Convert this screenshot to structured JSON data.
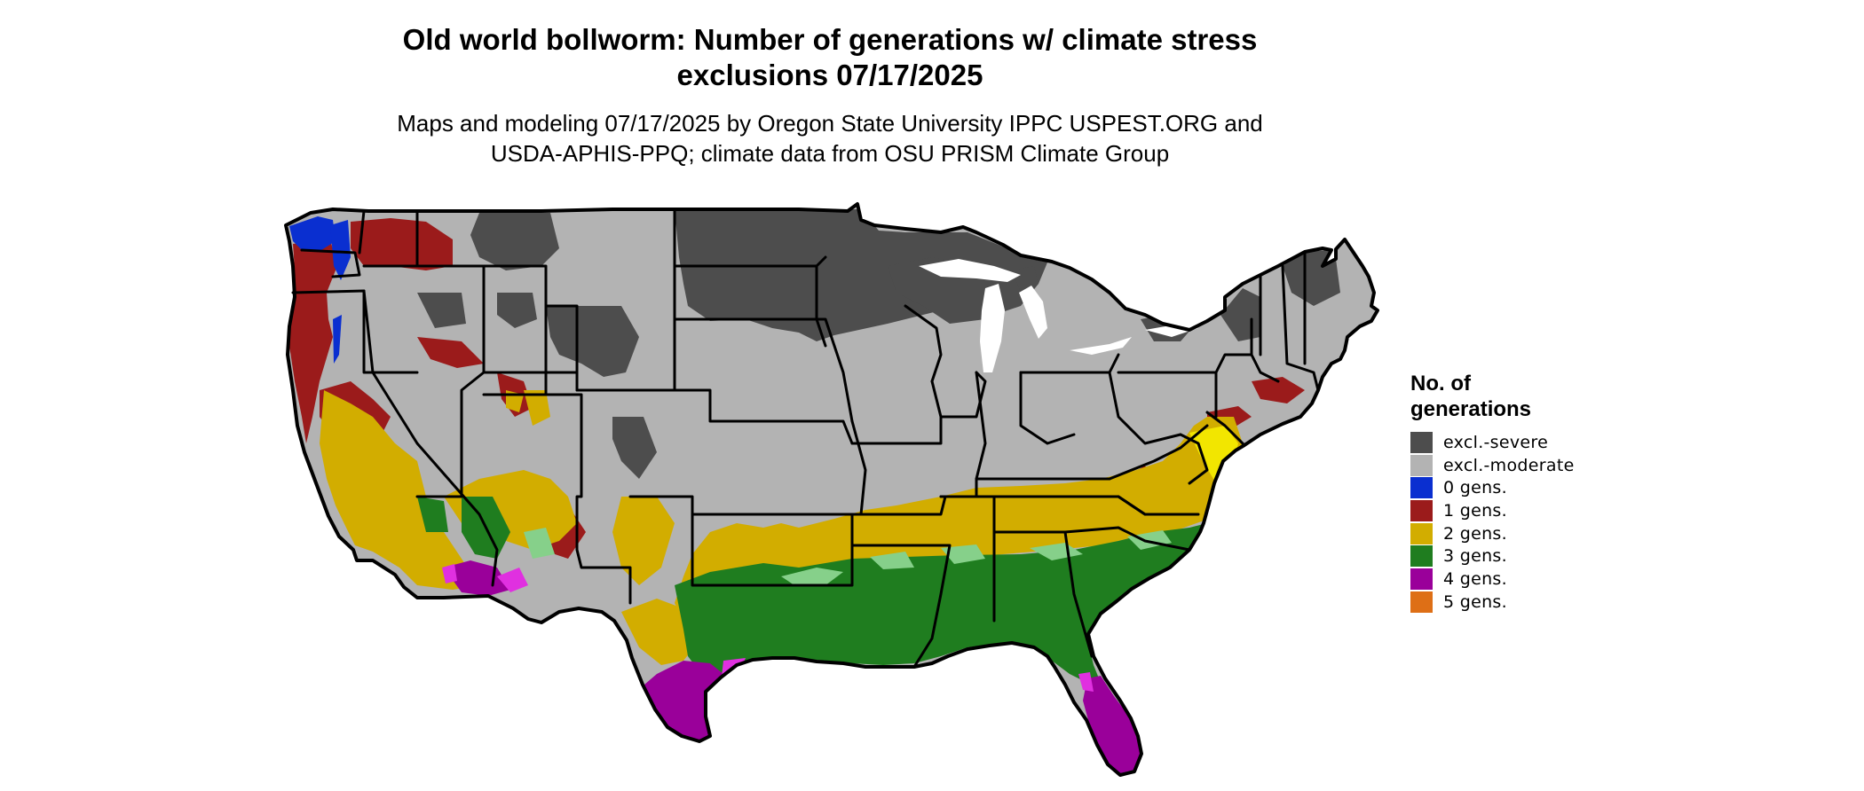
{
  "title": {
    "line1": "Old world bollworm: Number of generations w/ climate stress",
    "line2": "exclusions 07/17/2025"
  },
  "subtitle": {
    "line1": "Maps and modeling 07/17/2025 by Oregon State University IPPC USPEST.ORG and",
    "line2": "USDA-APHIS-PPQ; climate data from OSU PRISM Climate Group"
  },
  "legend": {
    "title_line1": "No. of",
    "title_line2": "generations",
    "items": [
      {
        "label": "excl.-severe",
        "color": "#4d4d4d"
      },
      {
        "label": "excl.-moderate",
        "color": "#b3b3b3"
      },
      {
        "label": "0 gens.",
        "color": "#0a2fd0"
      },
      {
        "label": "1 gens.",
        "color": "#9b1b1b"
      },
      {
        "label": "2 gens.",
        "color": "#d2ad00"
      },
      {
        "label": "3 gens.",
        "color": "#1f7d1f"
      },
      {
        "label": "4 gens.",
        "color": "#9a009a"
      },
      {
        "label": "5 gens.",
        "color": "#de6f16"
      }
    ]
  },
  "map": {
    "colors": {
      "excl_severe": "#4d4d4d",
      "excl_moderate": "#b3b3b3",
      "gens_0": "#0a2fd0",
      "gens_1": "#9b1b1b",
      "gens_2": "#d2ad00",
      "gens_2_bright": "#f2e600",
      "gens_3": "#1f7d1f",
      "gens_3_light": "#86d08a",
      "gens_4": "#9a009a",
      "gens_4_bright": "#e030e0",
      "gens_5": "#de6f16",
      "borders": "#000000",
      "lakes": "#ffffff"
    }
  }
}
